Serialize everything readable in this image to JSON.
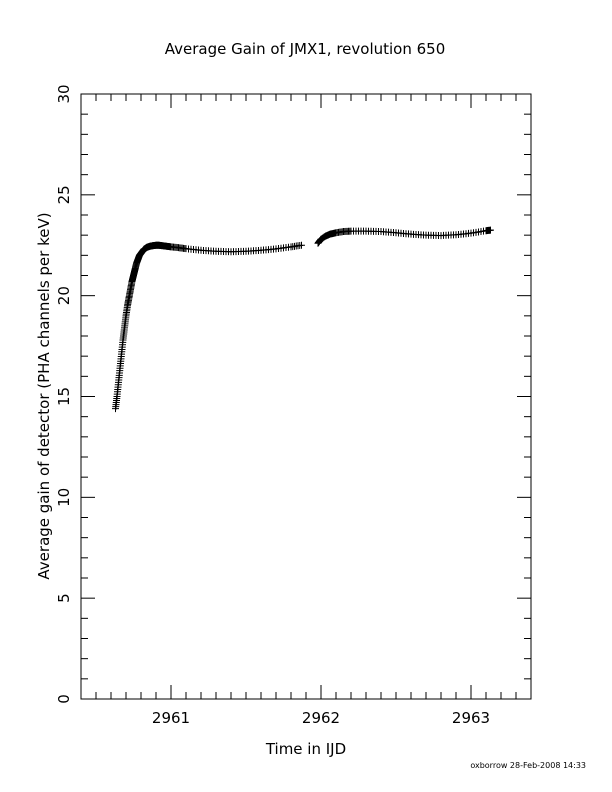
{
  "chart_data": {
    "type": "scatter",
    "title": "Average Gain of JMX1, revolution 650",
    "xlabel": "Time in IJD",
    "ylabel": "Average gain of detector (PHA channels per keV)",
    "xlim": [
      2960.4,
      2963.4
    ],
    "ylim": [
      0,
      30
    ],
    "x_ticks": [
      2961,
      2962,
      2963
    ],
    "x_tick_labels": [
      "2961",
      "2962",
      "2963"
    ],
    "x_minor_step": 0.1,
    "y_ticks": [
      0,
      5,
      10,
      15,
      20,
      25,
      30
    ],
    "y_tick_labels": [
      "0",
      "5",
      "10",
      "15",
      "20",
      "25",
      "30"
    ],
    "y_minor_step": 1,
    "grid": false,
    "marker": "plus",
    "color": "#000000",
    "series": [
      {
        "x": [
          2960.63,
          2960.64,
          2960.65,
          2960.66,
          2960.67,
          2960.68,
          2960.69,
          2960.7,
          2960.71,
          2960.72,
          2960.73,
          2960.74,
          2960.75,
          2960.76,
          2960.77,
          2960.78,
          2960.79,
          2960.8,
          2960.81,
          2960.82,
          2960.83,
          2960.84,
          2960.86,
          2960.88,
          2960.9,
          2960.92,
          2960.94,
          2960.97,
          2961.0,
          2961.05,
          2961.1,
          2961.2,
          2961.3,
          2961.4,
          2961.5,
          2961.6,
          2961.7,
          2961.8,
          2961.87
        ],
        "y": [
          14.4,
          15.0,
          15.7,
          16.4,
          17.1,
          17.8,
          18.4,
          19.0,
          19.5,
          19.9,
          20.3,
          20.7,
          21.0,
          21.3,
          21.6,
          21.8,
          22.0,
          22.1,
          22.2,
          22.3,
          22.35,
          22.4,
          22.45,
          22.48,
          22.5,
          22.5,
          22.48,
          22.45,
          22.42,
          22.38,
          22.33,
          22.25,
          22.2,
          22.18,
          22.2,
          22.25,
          22.32,
          22.42,
          22.5
        ]
      },
      {
        "x": [
          2961.98,
          2962.0,
          2962.03,
          2962.06,
          2962.1,
          2962.15,
          2962.2,
          2962.3,
          2962.4,
          2962.5,
          2962.6,
          2962.7,
          2962.8,
          2962.9,
          2963.0,
          2963.1,
          2963.13
        ],
        "y": [
          22.6,
          22.8,
          22.95,
          23.05,
          23.12,
          23.18,
          23.2,
          23.2,
          23.18,
          23.12,
          23.05,
          23.0,
          22.98,
          23.02,
          23.1,
          23.22,
          23.25
        ]
      }
    ]
  },
  "footer": "oxborrow 28-Feb-2008 14:33"
}
